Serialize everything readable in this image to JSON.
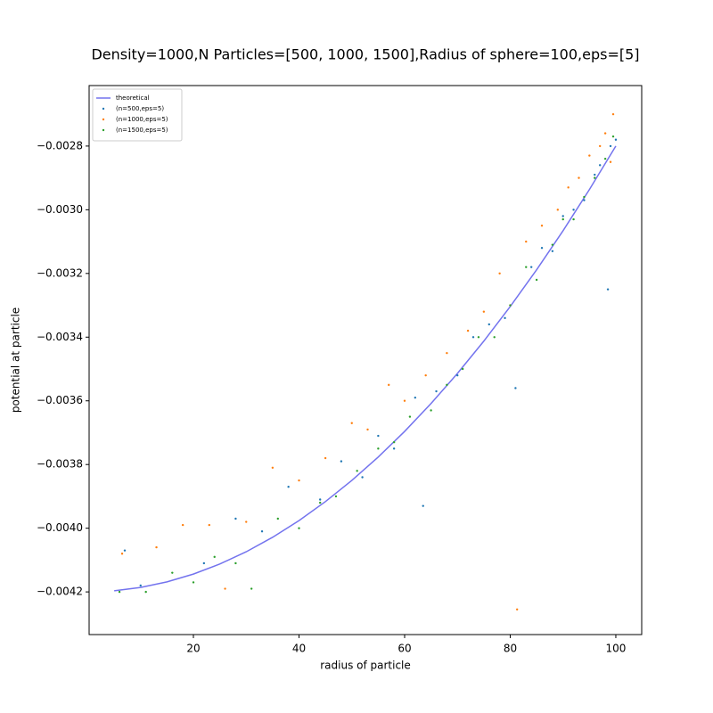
{
  "chart_data": {
    "type": "scatter",
    "title": "Density=1000,N Particles=[500, 1000, 1500],Radius of sphere=100,eps=[5]",
    "x_label": "radius of particle",
    "y_label": "potential at particle",
    "xlim": [
      0.25,
      104.9
    ],
    "ylim": [
      -0.004334,
      -0.00261
    ],
    "xticks": [
      20,
      40,
      60,
      80,
      100
    ],
    "yticks": [
      {
        "value": -0.0042,
        "label": "−0.0042"
      },
      {
        "value": -0.004,
        "label": "−0.0040"
      },
      {
        "value": -0.0038,
        "label": "−0.0038"
      },
      {
        "value": -0.0036,
        "label": "−0.0036"
      },
      {
        "value": -0.0034,
        "label": "−0.0034"
      },
      {
        "value": -0.0032,
        "label": "−0.0032"
      },
      {
        "value": -0.003,
        "label": "−0.0030"
      },
      {
        "value": -0.0028,
        "label": "−0.0028"
      }
    ],
    "legend": "upper left",
    "series": [
      {
        "name": "theoretical",
        "color": "#7373ee",
        "kind": "line",
        "x": [
          5,
          10,
          15,
          20,
          25,
          30,
          35,
          40,
          45,
          50,
          55,
          60,
          65,
          70,
          75,
          80,
          85,
          90,
          95,
          100
        ],
        "values": [
          -0.0041965,
          -0.004186,
          -0.0041685,
          -0.004144,
          -0.0041125,
          -0.004074,
          -0.0040285,
          -0.003976,
          -0.0039165,
          -0.00385,
          -0.0037765,
          -0.003696,
          -0.0036085,
          -0.003514,
          -0.0034125,
          -0.003304,
          -0.0031885,
          -0.003066,
          -0.0029365,
          -0.0028
        ]
      },
      {
        "name": "(n=500,eps=5)",
        "color": "#1f77b4",
        "kind": "point",
        "x": [
          7,
          10,
          22,
          28,
          33,
          38,
          44,
          48,
          52,
          55,
          58,
          62,
          63.5,
          66,
          70,
          73,
          76,
          79,
          81,
          84,
          86,
          88,
          90,
          92,
          94,
          96,
          97,
          98.5,
          99,
          100
        ],
        "values": [
          -0.00407,
          -0.00418,
          -0.00411,
          -0.00397,
          -0.00401,
          -0.00387,
          -0.00391,
          -0.00379,
          -0.00384,
          -0.00371,
          -0.00375,
          -0.00359,
          -0.00393,
          -0.00357,
          -0.00352,
          -0.0034,
          -0.00336,
          -0.00334,
          -0.00356,
          -0.00318,
          -0.00312,
          -0.00313,
          -0.00302,
          -0.003,
          -0.00297,
          -0.00289,
          -0.00286,
          -0.00325,
          -0.0028,
          -0.00278
        ]
      },
      {
        "name": "(n=1000,eps=5)",
        "color": "#ff7f0e",
        "kind": "point",
        "x": [
          6.5,
          13,
          18,
          23,
          26,
          30,
          35,
          40,
          45,
          50,
          53,
          57,
          60,
          64,
          68,
          72,
          75,
          78,
          80,
          81.3,
          83,
          86,
          89,
          91,
          93,
          95,
          97,
          98,
          99,
          99.5
        ],
        "values": [
          -0.00408,
          -0.00406,
          -0.00399,
          -0.00399,
          -0.00419,
          -0.00398,
          -0.00381,
          -0.00385,
          -0.00378,
          -0.00367,
          -0.00369,
          -0.00355,
          -0.0036,
          -0.00352,
          -0.00345,
          -0.00338,
          -0.00332,
          -0.0032,
          -0.0033,
          -0.004255,
          -0.0031,
          -0.00305,
          -0.003,
          -0.00293,
          -0.0029,
          -0.00283,
          -0.0028,
          -0.00276,
          -0.00285,
          -0.0027
        ]
      },
      {
        "name": "(n=1500,eps=5)",
        "color": "#2ca02c",
        "kind": "point",
        "x": [
          6,
          11,
          16,
          20,
          24,
          28,
          31,
          36,
          40,
          44,
          47,
          51,
          55,
          58,
          61,
          65,
          68,
          71,
          74,
          77,
          80,
          83,
          85,
          88,
          90,
          92,
          94,
          96,
          98,
          99.5
        ],
        "values": [
          -0.0042,
          -0.0042,
          -0.00414,
          -0.00417,
          -0.00409,
          -0.00411,
          -0.00419,
          -0.00397,
          -0.004,
          -0.00392,
          -0.0039,
          -0.00382,
          -0.00375,
          -0.00373,
          -0.00365,
          -0.00363,
          -0.00355,
          -0.0035,
          -0.0034,
          -0.0034,
          -0.0033,
          -0.00318,
          -0.00322,
          -0.00311,
          -0.00303,
          -0.00303,
          -0.00296,
          -0.0029,
          -0.00284,
          -0.00277
        ]
      }
    ]
  }
}
